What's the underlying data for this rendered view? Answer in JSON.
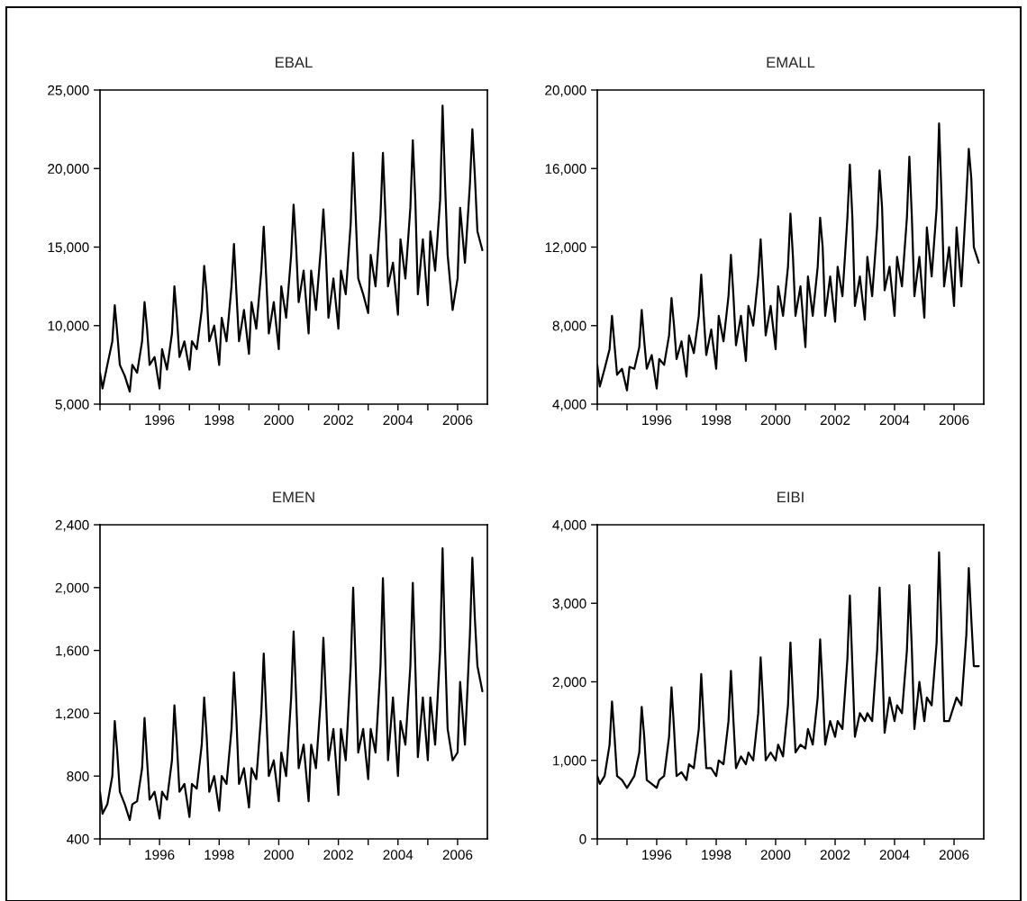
{
  "chart_data": [
    {
      "type": "line",
      "title": "EBAL",
      "xlim": [
        "1994",
        "2007"
      ],
      "ylim": [
        5000,
        25000
      ],
      "yticks": [
        {
          "value": 5000,
          "label": "5,000"
        },
        {
          "value": 10000,
          "label": "10,000"
        },
        {
          "value": 15000,
          "label": "15,000"
        },
        {
          "value": 20000,
          "label": "20,000"
        },
        {
          "value": 25000,
          "label": "25,000"
        }
      ],
      "xticks": [
        {
          "value": "1994",
          "label": null
        },
        {
          "value": "1995",
          "label": null
        },
        {
          "value": "1996",
          "label": "1996"
        },
        {
          "value": "1997",
          "label": null
        },
        {
          "value": "1998",
          "label": "1998"
        },
        {
          "value": "1999",
          "label": null
        },
        {
          "value": "2000",
          "label": "2000"
        },
        {
          "value": "2001",
          "label": null
        },
        {
          "value": "2002",
          "label": "2002"
        },
        {
          "value": "2003",
          "label": null
        },
        {
          "value": "2004",
          "label": "2004"
        },
        {
          "value": "2005",
          "label": null
        },
        {
          "value": "2006",
          "label": "2006"
        }
      ],
      "grid": false,
      "legend": false,
      "series": [
        {
          "color": "#000000",
          "x": [
            "1994-01",
            "1994-02",
            "1994-04",
            "1994-06",
            "1994-07",
            "1994-08",
            "1994-09",
            "1994-11",
            "1995-01",
            "1995-02",
            "1995-04",
            "1995-06",
            "1995-07",
            "1995-08",
            "1995-09",
            "1995-11",
            "1996-01",
            "1996-02",
            "1996-04",
            "1996-06",
            "1996-07",
            "1996-08",
            "1996-09",
            "1996-11",
            "1997-01",
            "1997-02",
            "1997-04",
            "1997-06",
            "1997-07",
            "1997-08",
            "1997-09",
            "1997-11",
            "1998-01",
            "1998-02",
            "1998-04",
            "1998-06",
            "1998-07",
            "1998-08",
            "1998-09",
            "1998-11",
            "1999-01",
            "1999-02",
            "1999-04",
            "1999-06",
            "1999-07",
            "1999-08",
            "1999-09",
            "1999-11",
            "2000-01",
            "2000-02",
            "2000-04",
            "2000-06",
            "2000-07",
            "2000-08",
            "2000-09",
            "2000-11",
            "2001-01",
            "2001-02",
            "2001-04",
            "2001-06",
            "2001-07",
            "2001-08",
            "2001-09",
            "2001-11",
            "2002-01",
            "2002-02",
            "2002-04",
            "2002-06",
            "2002-07",
            "2002-08",
            "2002-09",
            "2002-11",
            "2003-01",
            "2003-02",
            "2003-04",
            "2003-06",
            "2003-07",
            "2003-08",
            "2003-09",
            "2003-11",
            "2004-01",
            "2004-02",
            "2004-04",
            "2004-06",
            "2004-07",
            "2004-08",
            "2004-09",
            "2004-11",
            "2005-01",
            "2005-02",
            "2005-04",
            "2005-06",
            "2005-07",
            "2005-08",
            "2005-09",
            "2005-11",
            "2006-01",
            "2006-02",
            "2006-04",
            "2006-06",
            "2006-07",
            "2006-08",
            "2006-09",
            "2006-11"
          ],
          "values": [
            7000,
            6000,
            7500,
            9000,
            11300,
            9500,
            7500,
            6800,
            5800,
            7500,
            7000,
            9000,
            11500,
            9800,
            7500,
            8000,
            6000,
            8500,
            7200,
            9500,
            12500,
            10500,
            8000,
            9000,
            7200,
            9000,
            8500,
            11000,
            13800,
            12000,
            9000,
            10000,
            7500,
            10500,
            9000,
            12500,
            15200,
            12000,
            9000,
            11000,
            8200,
            11500,
            9800,
            13500,
            16300,
            13000,
            9500,
            11500,
            8500,
            12500,
            10500,
            14500,
            17700,
            15000,
            11500,
            13500,
            9500,
            13500,
            11000,
            15000,
            17400,
            14500,
            10500,
            13000,
            9800,
            13500,
            12000,
            16500,
            21000,
            17000,
            13000,
            12000,
            10800,
            14500,
            12500,
            17000,
            21000,
            17000,
            12500,
            14000,
            10700,
            15500,
            13000,
            17500,
            21800,
            18000,
            12000,
            15500,
            11300,
            16000,
            13500,
            18000,
            24000,
            19000,
            14500,
            11000,
            13000,
            17500,
            14000,
            19000,
            22500,
            19500,
            16000,
            14800
          ]
        }
      ]
    },
    {
      "type": "line",
      "title": "EMALL",
      "xlim": [
        "1994",
        "2007"
      ],
      "ylim": [
        4000,
        20000
      ],
      "yticks": [
        {
          "value": 4000,
          "label": "4,000"
        },
        {
          "value": 8000,
          "label": "8,000"
        },
        {
          "value": 12000,
          "label": "12,000"
        },
        {
          "value": 16000,
          "label": "16,000"
        },
        {
          "value": 20000,
          "label": "20,000"
        }
      ],
      "xticks": [
        {
          "value": "1994",
          "label": null
        },
        {
          "value": "1995",
          "label": null
        },
        {
          "value": "1996",
          "label": "1996"
        },
        {
          "value": "1997",
          "label": null
        },
        {
          "value": "1998",
          "label": "1998"
        },
        {
          "value": "1999",
          "label": null
        },
        {
          "value": "2000",
          "label": "2000"
        },
        {
          "value": "2001",
          "label": null
        },
        {
          "value": "2002",
          "label": "2002"
        },
        {
          "value": "2003",
          "label": null
        },
        {
          "value": "2004",
          "label": "2004"
        },
        {
          "value": "2005",
          "label": null
        },
        {
          "value": "2006",
          "label": "2006"
        }
      ],
      "grid": false,
      "legend": false,
      "series": [
        {
          "color": "#000000",
          "x": [
            "1994-01",
            "1994-02",
            "1994-04",
            "1994-06",
            "1994-07",
            "1994-08",
            "1994-09",
            "1994-11",
            "1995-01",
            "1995-02",
            "1995-04",
            "1995-06",
            "1995-07",
            "1995-08",
            "1995-09",
            "1995-11",
            "1996-01",
            "1996-02",
            "1996-04",
            "1996-06",
            "1996-07",
            "1996-08",
            "1996-09",
            "1996-11",
            "1997-01",
            "1997-02",
            "1997-04",
            "1997-06",
            "1997-07",
            "1997-08",
            "1997-09",
            "1997-11",
            "1998-01",
            "1998-02",
            "1998-04",
            "1998-06",
            "1998-07",
            "1998-08",
            "1998-09",
            "1998-11",
            "1999-01",
            "1999-02",
            "1999-04",
            "1999-06",
            "1999-07",
            "1999-08",
            "1999-09",
            "1999-11",
            "2000-01",
            "2000-02",
            "2000-04",
            "2000-06",
            "2000-07",
            "2000-08",
            "2000-09",
            "2000-11",
            "2001-01",
            "2001-02",
            "2001-04",
            "2001-06",
            "2001-07",
            "2001-08",
            "2001-09",
            "2001-11",
            "2002-01",
            "2002-02",
            "2002-04",
            "2002-06",
            "2002-07",
            "2002-08",
            "2002-09",
            "2002-11",
            "2003-01",
            "2003-02",
            "2003-04",
            "2003-06",
            "2003-07",
            "2003-08",
            "2003-09",
            "2003-11",
            "2004-01",
            "2004-02",
            "2004-04",
            "2004-06",
            "2004-07",
            "2004-08",
            "2004-09",
            "2004-11",
            "2005-01",
            "2005-02",
            "2005-04",
            "2005-06",
            "2005-07",
            "2005-08",
            "2005-09",
            "2005-11",
            "2006-01",
            "2006-02",
            "2006-04",
            "2006-06",
            "2006-07",
            "2006-08",
            "2006-09",
            "2006-11"
          ],
          "values": [
            6000,
            4900,
            5800,
            6800,
            8500,
            7000,
            5500,
            5800,
            4700,
            5900,
            5800,
            6900,
            8800,
            7200,
            5800,
            6500,
            4800,
            6300,
            6000,
            7500,
            9400,
            8000,
            6300,
            7200,
            5400,
            7500,
            6600,
            8500,
            10600,
            8500,
            6500,
            7800,
            5800,
            8500,
            7200,
            9500,
            11600,
            9500,
            7000,
            8500,
            6200,
            9000,
            8000,
            10500,
            12400,
            10000,
            7500,
            9000,
            6800,
            10000,
            8500,
            11000,
            13700,
            11500,
            8500,
            10000,
            6900,
            10500,
            8500,
            11000,
            13500,
            12000,
            8500,
            10500,
            8200,
            11000,
            9500,
            13500,
            16200,
            13500,
            9000,
            10500,
            8300,
            11500,
            9500,
            13000,
            15900,
            14000,
            9800,
            11000,
            8500,
            11500,
            10000,
            13500,
            16600,
            13500,
            9500,
            11500,
            8400,
            13000,
            10500,
            14000,
            18300,
            14500,
            10000,
            12000,
            9000,
            13000,
            10000,
            14500,
            17000,
            15500,
            12000,
            11200
          ]
        }
      ]
    },
    {
      "type": "line",
      "title": "EMEN",
      "xlim": [
        "1994",
        "2007"
      ],
      "ylim": [
        400,
        2400
      ],
      "yticks": [
        400,
        800,
        {
          "value": 1200,
          "label": "1,200"
        },
        {
          "value": 1600,
          "label": "1,600"
        },
        {
          "value": 2000,
          "label": "2,000"
        },
        {
          "value": 2400,
          "label": "2,400"
        }
      ],
      "xticks": [
        {
          "value": "1994",
          "label": null
        },
        {
          "value": "1995",
          "label": null
        },
        {
          "value": "1996",
          "label": "1996"
        },
        {
          "value": "1997",
          "label": null
        },
        {
          "value": "1998",
          "label": "1998"
        },
        {
          "value": "1999",
          "label": null
        },
        {
          "value": "2000",
          "label": "2000"
        },
        {
          "value": "2001",
          "label": null
        },
        {
          "value": "2002",
          "label": "2002"
        },
        {
          "value": "2003",
          "label": null
        },
        {
          "value": "2004",
          "label": "2004"
        },
        {
          "value": "2005",
          "label": null
        },
        {
          "value": "2006",
          "label": "2006"
        }
      ],
      "grid": false,
      "legend": false,
      "series": [
        {
          "color": "#000000",
          "x": [
            "1994-01",
            "1994-02",
            "1994-04",
            "1994-06",
            "1994-07",
            "1994-08",
            "1994-09",
            "1994-11",
            "1995-01",
            "1995-02",
            "1995-04",
            "1995-06",
            "1995-07",
            "1995-08",
            "1995-09",
            "1995-11",
            "1996-01",
            "1996-02",
            "1996-04",
            "1996-06",
            "1996-07",
            "1996-08",
            "1996-09",
            "1996-11",
            "1997-01",
            "1997-02",
            "1997-04",
            "1997-06",
            "1997-07",
            "1997-08",
            "1997-09",
            "1997-11",
            "1998-01",
            "1998-02",
            "1998-04",
            "1998-06",
            "1998-07",
            "1998-08",
            "1998-09",
            "1998-11",
            "1999-01",
            "1999-02",
            "1999-04",
            "1999-06",
            "1999-07",
            "1999-08",
            "1999-09",
            "1999-11",
            "2000-01",
            "2000-02",
            "2000-04",
            "2000-06",
            "2000-07",
            "2000-08",
            "2000-09",
            "2000-11",
            "2001-01",
            "2001-02",
            "2001-04",
            "2001-06",
            "2001-07",
            "2001-08",
            "2001-09",
            "2001-11",
            "2002-01",
            "2002-02",
            "2002-04",
            "2002-06",
            "2002-07",
            "2002-08",
            "2002-09",
            "2002-11",
            "2003-01",
            "2003-02",
            "2003-04",
            "2003-06",
            "2003-07",
            "2003-08",
            "2003-09",
            "2003-11",
            "2004-01",
            "2004-02",
            "2004-04",
            "2004-06",
            "2004-07",
            "2004-08",
            "2004-09",
            "2004-11",
            "2005-01",
            "2005-02",
            "2005-04",
            "2005-06",
            "2005-07",
            "2005-08",
            "2005-09",
            "2005-11",
            "2006-01",
            "2006-02",
            "2006-04",
            "2006-06",
            "2006-07",
            "2006-08",
            "2006-09",
            "2006-11"
          ],
          "values": [
            700,
            560,
            620,
            800,
            1150,
            950,
            700,
            620,
            520,
            620,
            640,
            850,
            1170,
            900,
            650,
            700,
            530,
            700,
            650,
            900,
            1250,
            1000,
            700,
            750,
            540,
            750,
            720,
            1000,
            1300,
            1050,
            700,
            800,
            580,
            800,
            750,
            1100,
            1460,
            1150,
            750,
            850,
            600,
            850,
            780,
            1200,
            1580,
            1200,
            800,
            900,
            640,
            950,
            800,
            1300,
            1720,
            1300,
            850,
            1000,
            640,
            1000,
            850,
            1300,
            1680,
            1300,
            900,
            1100,
            680,
            1100,
            900,
            1500,
            2000,
            1500,
            950,
            1100,
            780,
            1100,
            950,
            1500,
            2060,
            1500,
            900,
            1300,
            800,
            1150,
            1000,
            1500,
            2030,
            1500,
            920,
            1300,
            900,
            1300,
            1000,
            1600,
            2250,
            1600,
            1100,
            900,
            950,
            1400,
            1000,
            1700,
            2190,
            1800,
            1500,
            1340
          ]
        }
      ]
    },
    {
      "type": "line",
      "title": "EIBI",
      "xlim": [
        "1994",
        "2007"
      ],
      "ylim": [
        0,
        4000
      ],
      "yticks": [
        0,
        {
          "value": 1000,
          "label": "1,000"
        },
        {
          "value": 2000,
          "label": "2,000"
        },
        {
          "value": 3000,
          "label": "3,000"
        },
        {
          "value": 4000,
          "label": "4,000"
        }
      ],
      "xticks": [
        {
          "value": "1994",
          "label": null
        },
        {
          "value": "1995",
          "label": null
        },
        {
          "value": "1996",
          "label": "1996"
        },
        {
          "value": "1997",
          "label": null
        },
        {
          "value": "1998",
          "label": "1998"
        },
        {
          "value": "1999",
          "label": null
        },
        {
          "value": "2000",
          "label": "2000"
        },
        {
          "value": "2001",
          "label": null
        },
        {
          "value": "2002",
          "label": "2002"
        },
        {
          "value": "2003",
          "label": null
        },
        {
          "value": "2004",
          "label": "2004"
        },
        {
          "value": "2005",
          "label": null
        },
        {
          "value": "2006",
          "label": "2006"
        }
      ],
      "grid": false,
      "legend": false,
      "series": [
        {
          "color": "#000000",
          "x": [
            "1994-01",
            "1994-02",
            "1994-04",
            "1994-06",
            "1994-07",
            "1994-08",
            "1994-09",
            "1994-11",
            "1995-01",
            "1995-02",
            "1995-04",
            "1995-06",
            "1995-07",
            "1995-08",
            "1995-09",
            "1995-11",
            "1996-01",
            "1996-02",
            "1996-04",
            "1996-06",
            "1996-07",
            "1996-08",
            "1996-09",
            "1996-11",
            "1997-01",
            "1997-02",
            "1997-04",
            "1997-06",
            "1997-07",
            "1997-08",
            "1997-09",
            "1997-11",
            "1998-01",
            "1998-02",
            "1998-04",
            "1998-06",
            "1998-07",
            "1998-08",
            "1998-09",
            "1998-11",
            "1999-01",
            "1999-02",
            "1999-04",
            "1999-06",
            "1999-07",
            "1999-08",
            "1999-09",
            "1999-11",
            "2000-01",
            "2000-02",
            "2000-04",
            "2000-06",
            "2000-07",
            "2000-08",
            "2000-09",
            "2000-11",
            "2001-01",
            "2001-02",
            "2001-04",
            "2001-06",
            "2001-07",
            "2001-08",
            "2001-09",
            "2001-11",
            "2002-01",
            "2002-02",
            "2002-04",
            "2002-06",
            "2002-07",
            "2002-08",
            "2002-09",
            "2002-11",
            "2003-01",
            "2003-02",
            "2003-04",
            "2003-06",
            "2003-07",
            "2003-08",
            "2003-09",
            "2003-11",
            "2004-01",
            "2004-02",
            "2004-04",
            "2004-06",
            "2004-07",
            "2004-08",
            "2004-09",
            "2004-11",
            "2005-01",
            "2005-02",
            "2005-04",
            "2005-06",
            "2005-07",
            "2005-08",
            "2005-09",
            "2005-11",
            "2006-01",
            "2006-02",
            "2006-04",
            "2006-06",
            "2006-07",
            "2006-08",
            "2006-09",
            "2006-11"
          ],
          "values": [
            800,
            700,
            800,
            1200,
            1750,
            1300,
            800,
            750,
            650,
            700,
            800,
            1100,
            1680,
            1300,
            750,
            700,
            650,
            750,
            800,
            1300,
            1930,
            1400,
            800,
            850,
            750,
            950,
            900,
            1400,
            2100,
            1500,
            900,
            900,
            800,
            1000,
            950,
            1500,
            2140,
            1500,
            900,
            1050,
            950,
            1100,
            1000,
            1600,
            2310,
            1700,
            1000,
            1100,
            1000,
            1200,
            1050,
            1700,
            2500,
            1800,
            1100,
            1200,
            1150,
            1400,
            1200,
            1800,
            2540,
            1900,
            1200,
            1500,
            1300,
            1500,
            1400,
            2300,
            3100,
            2200,
            1300,
            1600,
            1500,
            1600,
            1500,
            2400,
            3200,
            2300,
            1350,
            1800,
            1500,
            1700,
            1600,
            2400,
            3230,
            2400,
            1400,
            2000,
            1500,
            1800,
            1700,
            2500,
            3650,
            2600,
            1500,
            1500,
            1700,
            1800,
            1700,
            2600,
            3450,
            2800,
            2200,
            2200
          ]
        }
      ]
    }
  ]
}
